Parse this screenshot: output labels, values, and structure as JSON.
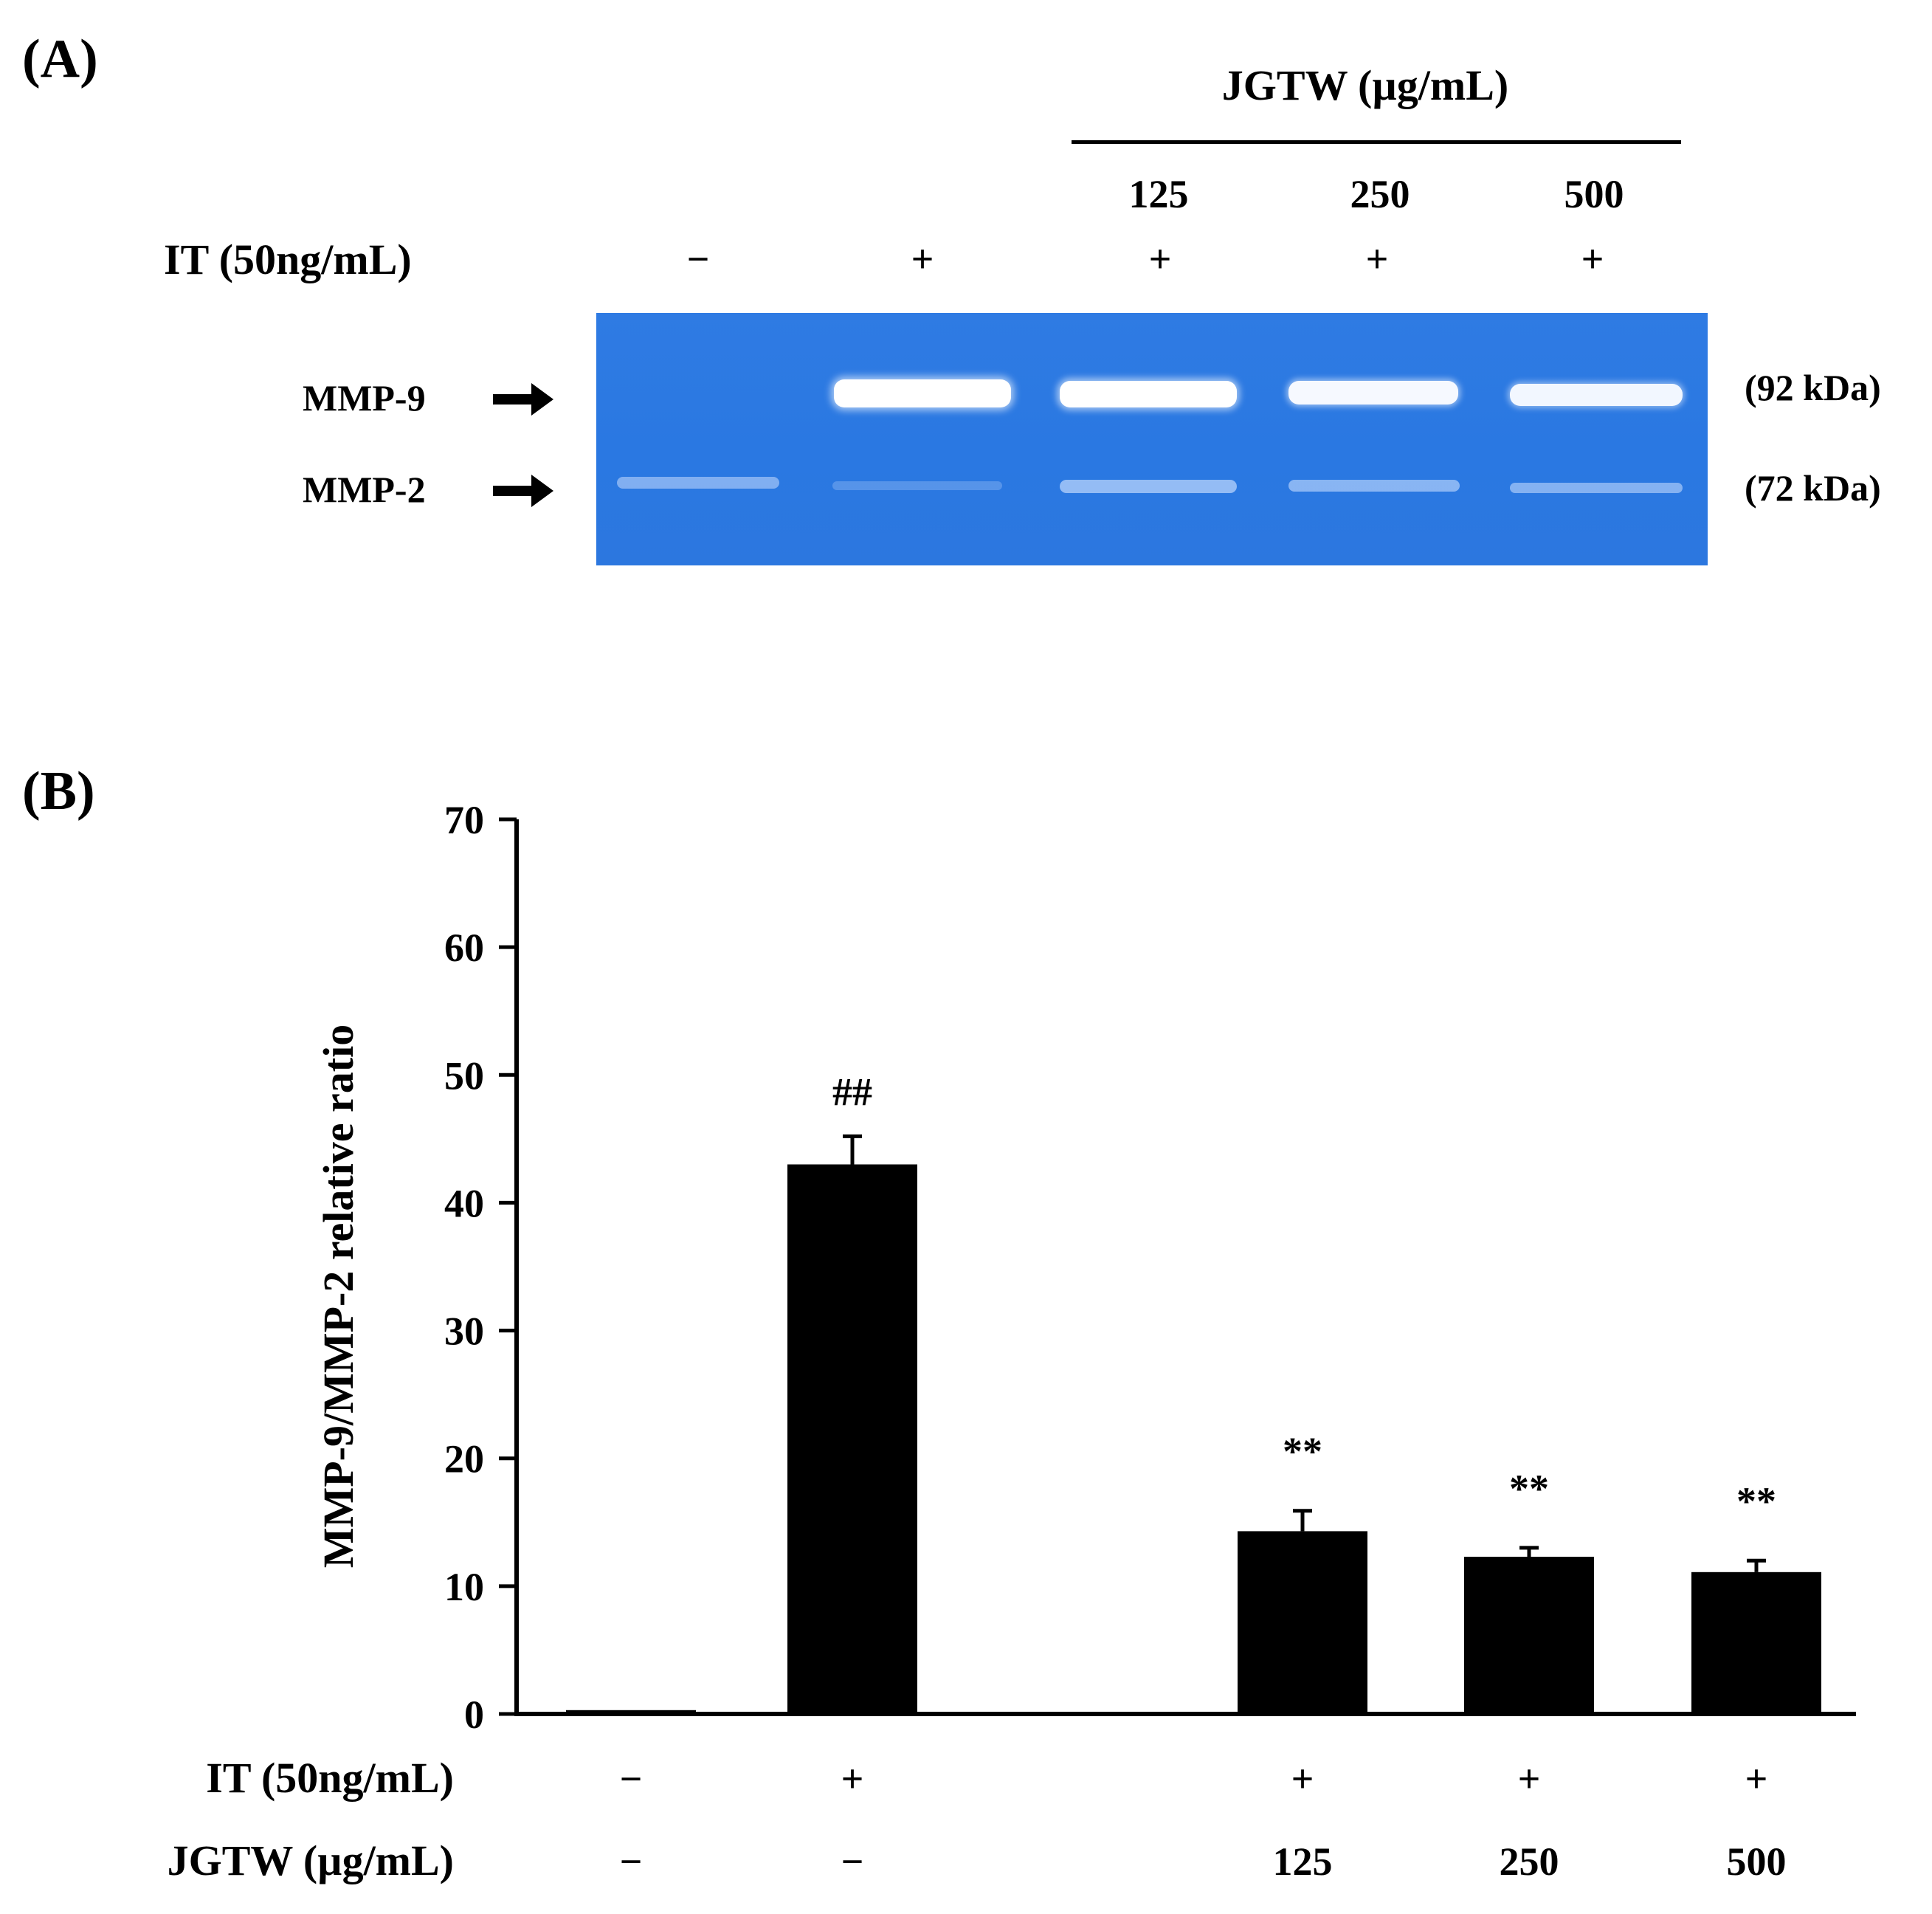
{
  "panel_a": {
    "label": "(A)",
    "treatment_header": "JGTW (µg/mL)",
    "doses": [
      "125",
      "250",
      "500"
    ],
    "it_label": "IT (50ng/mL)",
    "it_signs": [
      "−",
      "+",
      "+",
      "+",
      "+"
    ],
    "band_labels": {
      "mmp9": "MMP-9",
      "mmp2": "MMP-2"
    },
    "kda_labels": {
      "mmp9": "(92 kDa)",
      "mmp2": "(72 kDa)"
    },
    "gel_color": "#2c79e2"
  },
  "panel_b": {
    "label": "(B)"
  },
  "chart_data": {
    "type": "bar",
    "categories": [
      "Control",
      "IT",
      "IT + JGTW 125",
      "IT + JGTW 250",
      "IT + JGTW 500"
    ],
    "values": [
      0.3,
      43,
      14.3,
      12.3,
      11.1
    ],
    "errors": [
      0,
      2.2,
      1.6,
      0.7,
      0.9
    ],
    "annotations": [
      "",
      "##",
      "**",
      "**",
      "**"
    ],
    "ylabel": "MMP-9/MMP-2 relative ratio",
    "ylim": [
      0,
      70
    ],
    "yticks": [
      0,
      10,
      20,
      30,
      40,
      50,
      60,
      70
    ],
    "bar_color": "#000000",
    "x_rows": [
      {
        "label": "IT (50ng/mL)",
        "values": [
          "−",
          "+",
          "+",
          "+",
          "+"
        ]
      },
      {
        "label": "JGTW (µg/mL)",
        "values": [
          "−",
          "−",
          "125",
          "250",
          "500"
        ]
      }
    ]
  }
}
